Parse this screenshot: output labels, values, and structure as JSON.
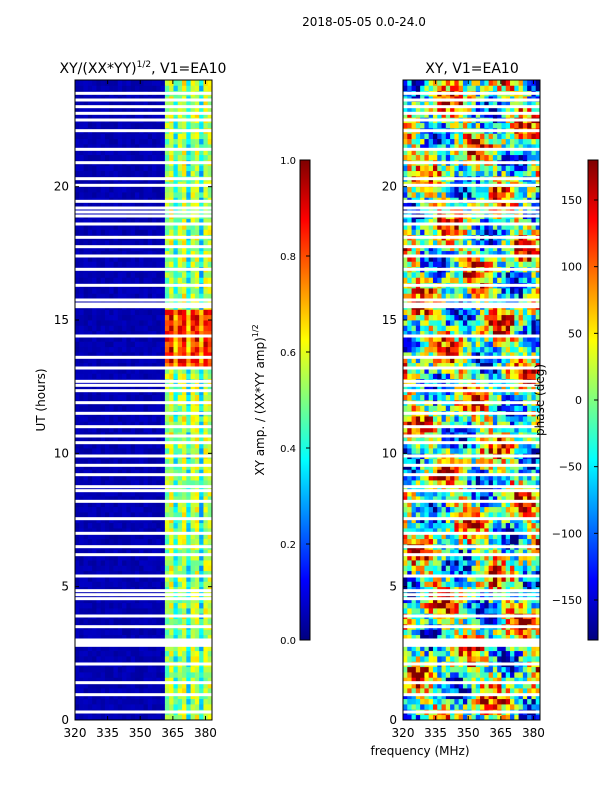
{
  "suptitle": "2018-05-05 0.0-24.0",
  "colors": {
    "white": "#ffffff",
    "axis": "#000000",
    "jet_stops": [
      "#00007f",
      "#0000ff",
      "#007fff",
      "#00ffff",
      "#7fff7f",
      "#ffff00",
      "#ff7f00",
      "#ff0000",
      "#7f0000"
    ]
  },
  "chart_data": [
    {
      "id": "amp",
      "type": "heatmap",
      "title": "XY/(XX*YY)",
      "title_exp": "1/2",
      "title_suffix": ", V1=EA10",
      "xlabel": "",
      "ylabel": "UT (hours)",
      "xlim": [
        320,
        383
      ],
      "ylim": [
        0,
        24
      ],
      "xticks": [
        320,
        335,
        350,
        365,
        380
      ],
      "yticks": [
        0,
        5,
        10,
        15,
        20
      ],
      "colorbar": {
        "label": "XY amp. / (XX*YY amp)",
        "label_exp": "1/2",
        "vmin": 0.0,
        "vmax": 1.0,
        "ticks": [
          "0.0",
          "0.2",
          "0.4",
          "0.6",
          "0.8",
          "1.0"
        ]
      }
    },
    {
      "id": "phase",
      "type": "heatmap",
      "title": "XY, V1=EA10",
      "xlabel": "frequency (MHz)",
      "ylabel": "",
      "xlim": [
        320,
        383
      ],
      "ylim": [
        0,
        24
      ],
      "xticks": [
        320,
        335,
        350,
        365,
        380
      ],
      "yticks": [
        0,
        5,
        10,
        15,
        20
      ],
      "colorbar": {
        "label": "phase (deg)",
        "vmin": -180,
        "vmax": 180,
        "ticks": [
          "150",
          "100",
          "50",
          "0",
          "−50",
          "−100",
          "−150"
        ],
        "tick_values": [
          150,
          100,
          50,
          0,
          -50,
          -100,
          -150
        ]
      }
    }
  ],
  "flagged_hours": [
    0.3,
    0.95,
    1.4,
    2.1,
    2.8,
    2.9,
    3.0,
    3.5,
    3.9,
    4.55,
    4.7,
    4.85,
    5.4,
    6.2,
    6.5,
    7.0,
    7.55,
    8.2,
    8.6,
    8.75,
    9.2,
    9.55,
    9.9,
    10.4,
    10.65,
    11.0,
    11.5,
    11.9,
    12.35,
    12.55,
    12.7,
    13.2,
    13.6,
    14.4,
    15.5,
    15.6,
    15.75,
    16.3,
    16.9,
    17.4,
    17.75,
    18.1,
    18.6,
    18.9,
    19.05,
    19.2,
    19.45,
    20.05,
    20.3,
    20.9,
    21.4,
    22.1,
    22.5,
    22.75,
    23.0,
    23.25,
    23.5
  ]
}
